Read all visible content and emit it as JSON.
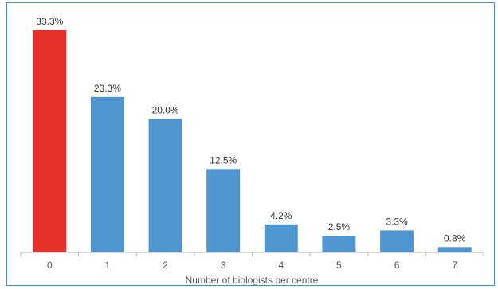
{
  "chart_data": {
    "type": "bar",
    "title": "",
    "xlabel": "Number of biologists per centre",
    "ylabel": "",
    "categories": [
      "0",
      "1",
      "2",
      "3",
      "4",
      "5",
      "6",
      "7"
    ],
    "values": [
      33.3,
      23.3,
      20.0,
      12.5,
      4.2,
      2.5,
      3.3,
      0.8
    ],
    "value_labels": [
      "33.3%",
      "23.3%",
      "20.0%",
      "12.5%",
      "4.2%",
      "2.5%",
      "3.3%",
      "0.8%"
    ],
    "ylim": [
      0,
      33.3
    ],
    "grid": false,
    "legend": "none",
    "colors": [
      "#e8302a",
      "#4f96d0",
      "#4f96d0",
      "#4f96d0",
      "#4f96d0",
      "#4f96d0",
      "#4f96d0",
      "#4f96d0"
    ],
    "frame_color": "#2e9ad0"
  }
}
